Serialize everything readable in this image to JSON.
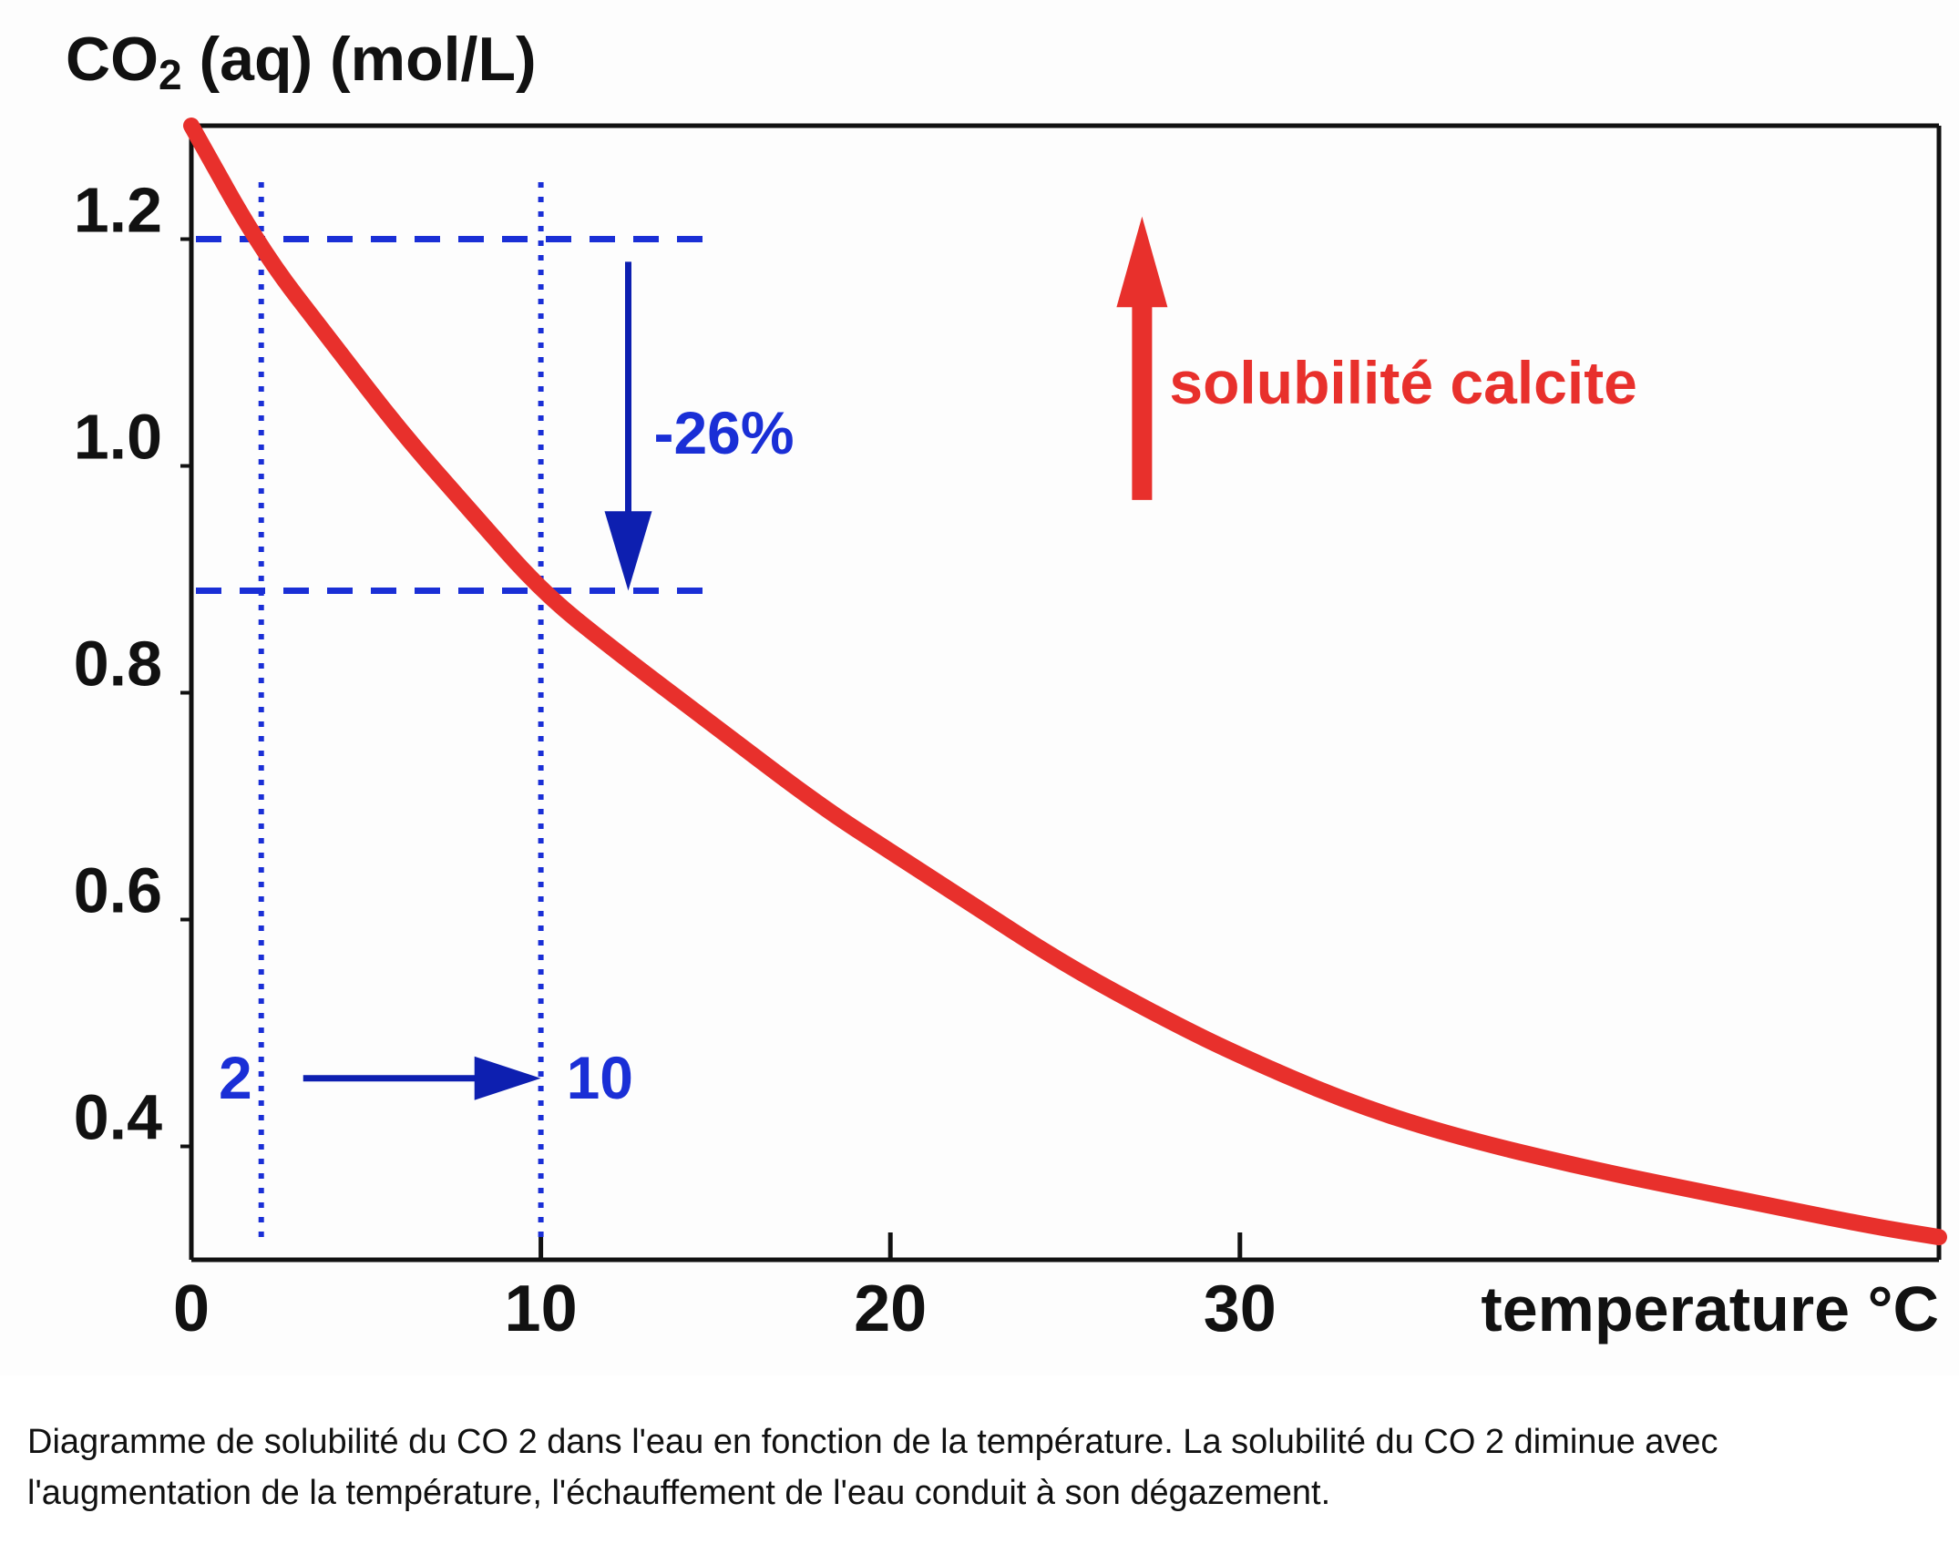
{
  "chart_data": {
    "type": "line",
    "ylabel_main": "CO",
    "ylabel_sub": "2",
    "ylabel_rest": " (aq)  (mol/L)",
    "xlabel": "temperature °C",
    "xlim": [
      0,
      50
    ],
    "ylim": [
      0.3,
      1.3
    ],
    "x_ticks": [
      0,
      10,
      20,
      30
    ],
    "x_tick_labels": [
      "0",
      "10",
      "20",
      "30"
    ],
    "y_ticks": [
      0.4,
      0.6,
      0.8,
      1.0,
      1.2
    ],
    "y_tick_labels": [
      "0.4",
      "0.6",
      "0.8",
      "1.0",
      "1.2"
    ],
    "grid": false,
    "series": [
      {
        "color": "#e8302c",
        "x": [
          0,
          2,
          4,
          6,
          8,
          10,
          12,
          15,
          18,
          20,
          22,
          25,
          28,
          30,
          33,
          36,
          40,
          44,
          48,
          50
        ],
        "values": [
          1.3,
          1.19,
          1.11,
          1.03,
          0.96,
          0.89,
          0.84,
          0.77,
          0.7,
          0.66,
          0.62,
          0.56,
          0.51,
          0.48,
          0.44,
          0.41,
          0.38,
          0.355,
          0.33,
          0.32
        ]
      }
    ],
    "annotations": {
      "percent_label": "-26%",
      "temp_from": "2",
      "temp_to": "10",
      "red_arrow_label": "solubilité calcite",
      "ref_lines_x": [
        2,
        10
      ],
      "ref_lines_y": [
        1.2,
        0.89
      ],
      "annotation_color": "#1a2fd6",
      "arrow_color": "#0d1fb0",
      "red_color": "#e8302c"
    }
  },
  "caption": {
    "line1": "Diagramme de solubilité du CO 2 dans l'eau en fonction de la température. La solubilité du CO 2 diminue avec",
    "line2": "l'augmentation de la température, l'échauffement de l'eau conduit à son dégazement."
  }
}
